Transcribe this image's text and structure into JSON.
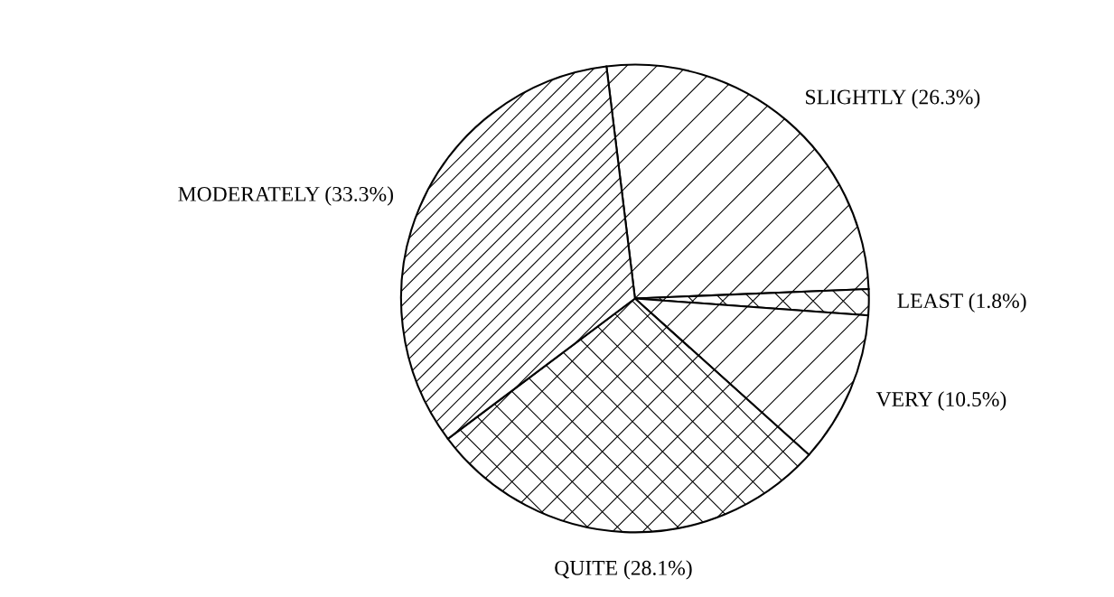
{
  "chart_data": {
    "type": "pie",
    "categories": [
      "SLIGHTLY (26.3%)",
      "LEAST (1.8%)",
      "VERY (10.5%)",
      "QUITE (28.1%)",
      "MODERATELY (33.3%)"
    ],
    "values": [
      26.3,
      1.8,
      10.5,
      28.1,
      33.3
    ],
    "colors": [
      "#ffffff",
      "#ffffff",
      "#ffffff",
      "#ffffff",
      "#ffffff"
    ]
  }
}
